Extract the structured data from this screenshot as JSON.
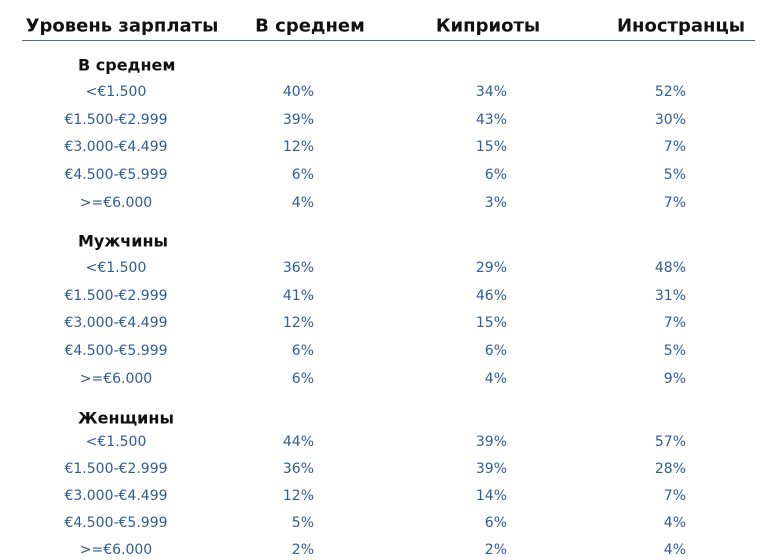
{
  "header": [
    "Уровень зарплаты",
    "В среднем",
    "Киприоты",
    "Иностранцы"
  ],
  "groups": [
    {
      "title": "В среднем",
      "rows": [
        [
          "<€1.500",
          "40%",
          "34%",
          "52%"
        ],
        [
          "€1.500-€2.999",
          "39%",
          "43%",
          "30%"
        ],
        [
          "€3.000-€4.499",
          "12%",
          "15%",
          "7%"
        ],
        [
          "€4.500-€5.999",
          "6%",
          "6%",
          "5%"
        ],
        [
          ">=€6.000",
          "4%",
          "3%",
          "7%"
        ]
      ]
    },
    {
      "title": "Мужчины",
      "rows": [
        [
          "<€1.500",
          "36%",
          "29%",
          "48%"
        ],
        [
          "€1.500-€2.999",
          "41%",
          "46%",
          "31%"
        ],
        [
          "€3.000-€4.499",
          "12%",
          "15%",
          "7%"
        ],
        [
          "€4.500-€5.999",
          "6%",
          "6%",
          "5%"
        ],
        [
          ">=€6.000",
          "6%",
          "4%",
          "9%"
        ]
      ]
    },
    {
      "title": "Женщины",
      "rows": [
        [
          "<€1.500",
          "44%",
          "39%",
          "57%"
        ],
        [
          "€1.500-€2.999",
          "36%",
          "39%",
          "28%"
        ],
        [
          "€3.000-€4.499",
          "12%",
          "14%",
          "7%"
        ],
        [
          "€4.500-€5.999",
          "5%",
          "6%",
          "4%"
        ],
        [
          ">=€6.000",
          "2%",
          "2%",
          "4%"
        ]
      ]
    }
  ]
}
